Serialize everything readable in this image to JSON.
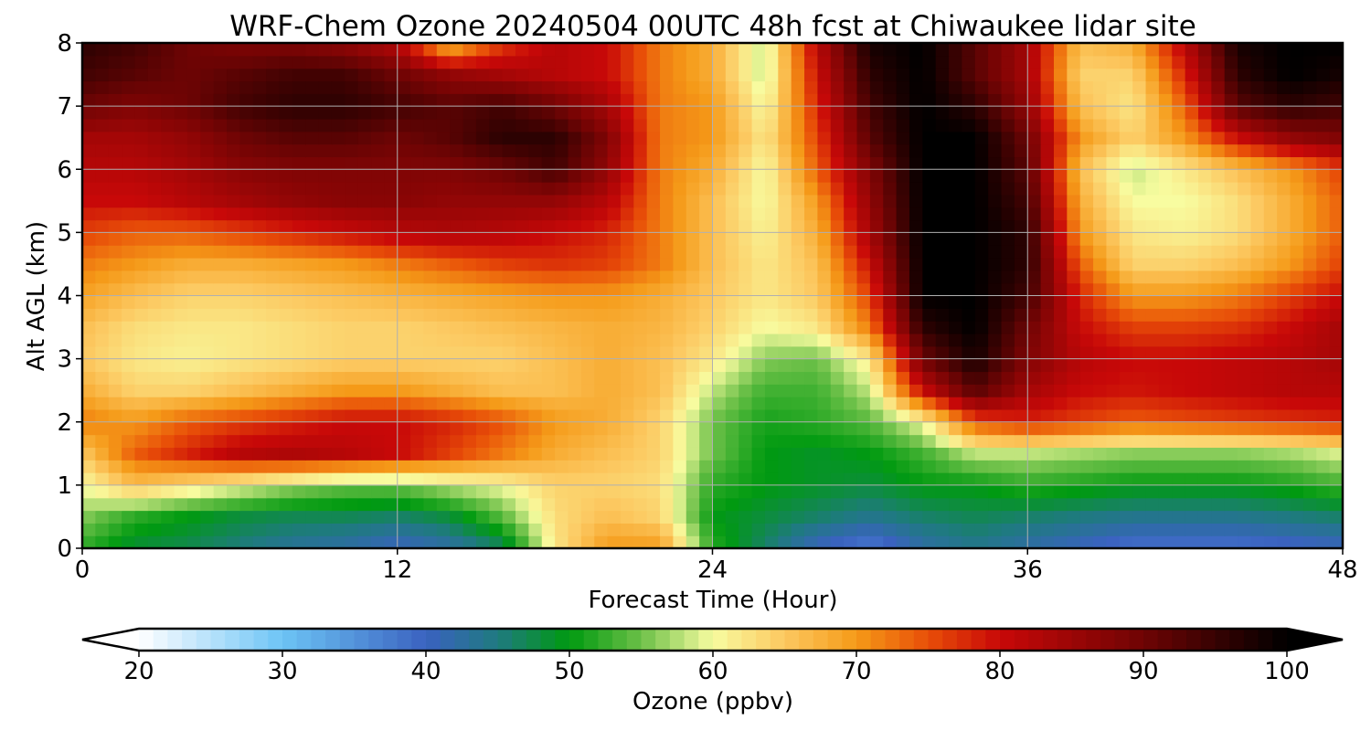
{
  "chart_data": {
    "type": "heatmap",
    "title": "WRF-Chem Ozone  20240504 00UTC 48h fcst at Chiwaukee lidar site",
    "xlabel": "Forecast Time (Hour)",
    "ylabel": "Alt AGL (km)",
    "xlim": [
      0,
      48
    ],
    "ylim": [
      0,
      8
    ],
    "xticks": [
      0,
      12,
      24,
      36,
      48
    ],
    "yticks": [
      0,
      1,
      2,
      3,
      4,
      5,
      6,
      7,
      8
    ],
    "grid": true,
    "x": [
      0,
      2,
      4,
      6,
      8,
      10,
      12,
      14,
      16,
      18,
      20,
      22,
      24,
      26,
      28,
      30,
      32,
      34,
      36,
      38,
      40,
      42,
      44,
      46,
      48
    ],
    "y": [
      0,
      0.5,
      1,
      1.5,
      2,
      2.5,
      3,
      3.5,
      4,
      4.5,
      5,
      5.5,
      6,
      6.5,
      7,
      7.5,
      8
    ],
    "z": [
      [
        52,
        48,
        47,
        45,
        43,
        42,
        40,
        42,
        46,
        62,
        70,
        70,
        52,
        46,
        40,
        37,
        42,
        44,
        42,
        40,
        38,
        38,
        38,
        39,
        40
      ],
      [
        56,
        52,
        50,
        48,
        47,
        47,
        46,
        48,
        54,
        63,
        66,
        64,
        50,
        48,
        46,
        44,
        46,
        47,
        46,
        45,
        44,
        44,
        44,
        45,
        46
      ],
      [
        60,
        66,
        63,
        60,
        57,
        55,
        55,
        58,
        60,
        64,
        64,
        63,
        52,
        50,
        49,
        48,
        50,
        50,
        52,
        51,
        50,
        50,
        50,
        51,
        53
      ],
      [
        65,
        74,
        78,
        82,
        83,
        82,
        80,
        76,
        72,
        68,
        66,
        64,
        55,
        50,
        49,
        50,
        53,
        58,
        58,
        57,
        56,
        56,
        56,
        57,
        59
      ],
      [
        72,
        70,
        74,
        76,
        78,
        80,
        80,
        78,
        75,
        70,
        68,
        64,
        55,
        51,
        52,
        54,
        60,
        75,
        78,
        76,
        74,
        75,
        76,
        77,
        78
      ],
      [
        68,
        64,
        64,
        66,
        68,
        70,
        70,
        68,
        66,
        66,
        68,
        66,
        58,
        53,
        53,
        58,
        80,
        92,
        84,
        80,
        79,
        80,
        81,
        82,
        82
      ],
      [
        65,
        62,
        61,
        62,
        63,
        64,
        64,
        64,
        64,
        66,
        68,
        66,
        62,
        56,
        55,
        62,
        90,
        98,
        88,
        82,
        80,
        80,
        81,
        82,
        84
      ],
      [
        66,
        63,
        62,
        62,
        63,
        64,
        64,
        65,
        66,
        67,
        68,
        67,
        64,
        60,
        62,
        72,
        96,
        100,
        90,
        80,
        76,
        76,
        77,
        80,
        84
      ],
      [
        69,
        66,
        64,
        64,
        65,
        66,
        67,
        68,
        69,
        70,
        70,
        68,
        65,
        62,
        65,
        76,
        100,
        100,
        94,
        78,
        70,
        70,
        72,
        76,
        80
      ],
      [
        72,
        70,
        68,
        68,
        69,
        70,
        72,
        74,
        76,
        77,
        76,
        72,
        66,
        62,
        66,
        80,
        100,
        100,
        96,
        74,
        64,
        64,
        66,
        70,
        76
      ],
      [
        76,
        74,
        74,
        76,
        78,
        80,
        82,
        83,
        82,
        80,
        78,
        72,
        66,
        61,
        68,
        84,
        100,
        100,
        96,
        70,
        62,
        61,
        63,
        68,
        74
      ],
      [
        80,
        80,
        82,
        84,
        86,
        87,
        87,
        86,
        86,
        86,
        82,
        72,
        66,
        60,
        70,
        86,
        100,
        100,
        94,
        68,
        60,
        60,
        63,
        68,
        74
      ],
      [
        82,
        82,
        84,
        87,
        88,
        88,
        88,
        88,
        90,
        94,
        86,
        72,
        68,
        60,
        74,
        88,
        100,
        100,
        92,
        66,
        58,
        62,
        66,
        70,
        76
      ],
      [
        84,
        84,
        86,
        90,
        92,
        92,
        90,
        92,
        96,
        96,
        88,
        72,
        70,
        62,
        76,
        92,
        100,
        100,
        90,
        70,
        64,
        70,
        80,
        86,
        88
      ],
      [
        90,
        88,
        90,
        94,
        96,
        96,
        94,
        92,
        94,
        90,
        84,
        72,
        70,
        60,
        78,
        94,
        100,
        96,
        86,
        66,
        62,
        74,
        92,
        96,
        94
      ],
      [
        94,
        92,
        90,
        92,
        94,
        94,
        90,
        86,
        84,
        82,
        80,
        72,
        68,
        58,
        80,
        96,
        100,
        92,
        84,
        64,
        64,
        78,
        96,
        100,
        98
      ],
      [
        96,
        94,
        90,
        88,
        88,
        86,
        82,
        66,
        76,
        82,
        80,
        72,
        68,
        58,
        82,
        98,
        100,
        92,
        84,
        66,
        68,
        82,
        98,
        100,
        100
      ]
    ],
    "colorbar": {
      "label": "Ozone  (ppbv)",
      "min": 20,
      "max": 100,
      "ticks": [
        20,
        30,
        40,
        50,
        60,
        70,
        80,
        90,
        100
      ],
      "extend": "both",
      "colors": [
        {
          "v": 20,
          "c": "#ffffff"
        },
        {
          "v": 30,
          "c": "#6dc4f5"
        },
        {
          "v": 40,
          "c": "#3a62c0"
        },
        {
          "v": 45,
          "c": "#1f7a80"
        },
        {
          "v": 50,
          "c": "#009a10"
        },
        {
          "v": 55,
          "c": "#6cc048"
        },
        {
          "v": 60,
          "c": "#f8fca0"
        },
        {
          "v": 65,
          "c": "#fcc860"
        },
        {
          "v": 70,
          "c": "#f59a18"
        },
        {
          "v": 75,
          "c": "#e84e08"
        },
        {
          "v": 80,
          "c": "#c80808"
        },
        {
          "v": 90,
          "c": "#6e0404"
        },
        {
          "v": 100,
          "c": "#000000"
        }
      ]
    }
  }
}
